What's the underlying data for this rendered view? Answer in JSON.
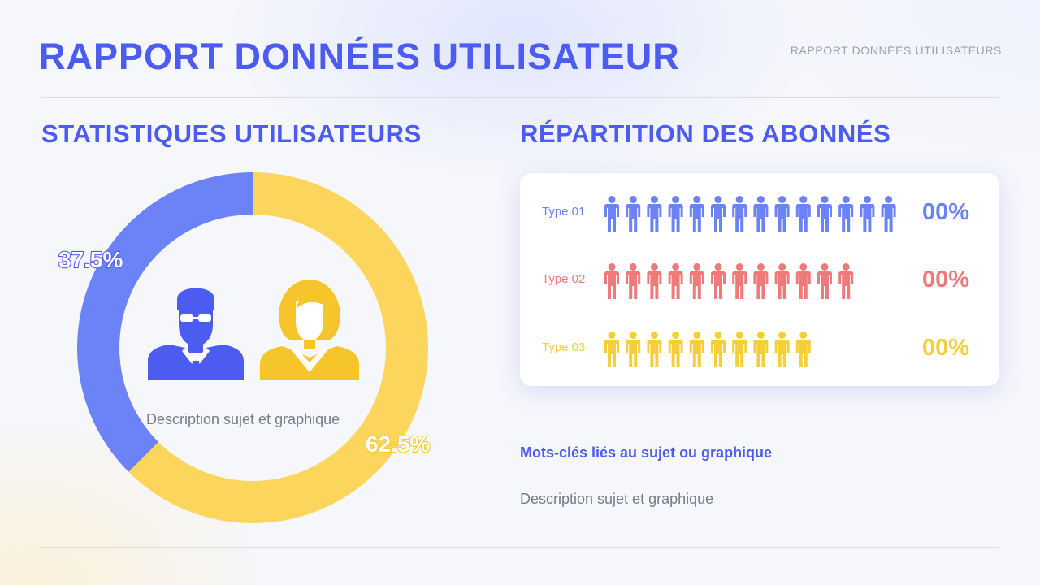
{
  "header": {
    "title": "RAPPORT DONNÉES UTILISATEUR",
    "corner_label": "RAPPORT DONNÉES UTILISATEURS"
  },
  "left": {
    "section_title": "STATISTIQUES UTILISATEURS",
    "description": "Description sujet et graphique",
    "persona_male_icon": "man-with-sunglasses-icon",
    "persona_female_icon": "woman-icon"
  },
  "right": {
    "section_title": "RÉPARTITION DES ABONNÉS",
    "keywords": "Mots-clés liés au sujet ou graphique",
    "description": "Description sujet et graphique",
    "person_icon": "person-icon"
  },
  "chart_data": [
    {
      "type": "pie",
      "variant": "donut",
      "labels": [
        "37.5%",
        "62.5%"
      ],
      "values": [
        37.5,
        62.5
      ],
      "colors": [
        "#6c82f7",
        "#fcd55c"
      ]
    },
    {
      "type": "table",
      "variant": "pictograph",
      "rows": [
        {
          "label": "Type 01",
          "value_label": "00%",
          "count": 14,
          "color": "#6c82f7"
        },
        {
          "label": "Type 02",
          "value_label": "00%",
          "count": 12,
          "color": "#ee7a7a"
        },
        {
          "label": "Type 03",
          "value_label": "00%",
          "count": 10,
          "color": "#f5cf3a"
        }
      ]
    }
  ],
  "colors": {
    "accent": "#4d5cf0",
    "blue_segment": "#6c82f7",
    "yellow_segment": "#fcd55c",
    "male_icon": "#4d5cf0",
    "female_icon": "#f6c52b"
  }
}
